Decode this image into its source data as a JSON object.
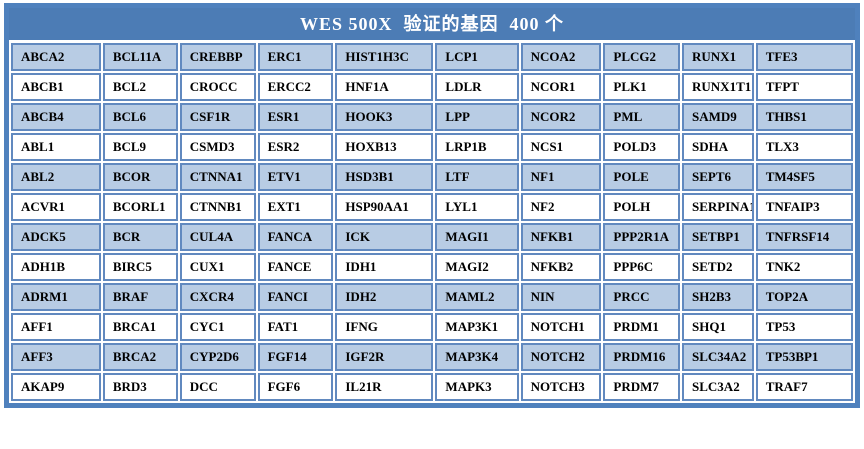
{
  "title": "WES 500X  验证的基因  400 个",
  "colors": {
    "frame": "#4f81bd",
    "header_bg": "#4c7cb5",
    "alt_row_bg": "#b8cce4",
    "row_bg": "#ffffff",
    "cell_border": "#6189bf",
    "title_color": "#ffffff",
    "text_color": "#000000"
  },
  "table": {
    "rows": [
      [
        "ABCA2",
        "BCL11A",
        "CREBBP",
        "ERC1",
        "HIST1H3C",
        "LCP1",
        "NCOA2",
        "PLCG2",
        "RUNX1",
        "TFE3"
      ],
      [
        "ABCB1",
        "BCL2",
        "CROCC",
        "ERCC2",
        "HNF1A",
        "LDLR",
        "NCOR1",
        "PLK1",
        "RUNX1T1",
        "TFPT"
      ],
      [
        "ABCB4",
        "BCL6",
        "CSF1R",
        "ESR1",
        "HOOK3",
        "LPP",
        "NCOR2",
        "PML",
        "SAMD9",
        "THBS1"
      ],
      [
        "ABL1",
        "BCL9",
        "CSMD3",
        "ESR2",
        "HOXB13",
        "LRP1B",
        "NCS1",
        "POLD3",
        "SDHA",
        "TLX3"
      ],
      [
        "ABL2",
        "BCOR",
        "CTNNA1",
        "ETV1",
        "HSD3B1",
        "LTF",
        "NF1",
        "POLE",
        "SEPT6",
        "TM4SF5"
      ],
      [
        "ACVR1",
        "BCORL1",
        "CTNNB1",
        "EXT1",
        "HSP90AA1",
        "LYL1",
        "NF2",
        "POLH",
        "SERPINA1",
        "TNFAIP3"
      ],
      [
        "ADCK5",
        "BCR",
        "CUL4A",
        "FANCA",
        "ICK",
        "MAGI1",
        "NFKB1",
        "PPP2R1A",
        "SETBP1",
        "TNFRSF14"
      ],
      [
        "ADH1B",
        "BIRC5",
        "CUX1",
        "FANCE",
        "IDH1",
        "MAGI2",
        "NFKB2",
        "PPP6C",
        "SETD2",
        "TNK2"
      ],
      [
        "ADRM1",
        "BRAF",
        "CXCR4",
        "FANCI",
        "IDH2",
        "MAML2",
        "NIN",
        "PRCC",
        "SH2B3",
        "TOP2A"
      ],
      [
        "AFF1",
        "BRCA1",
        "CYC1",
        "FAT1",
        "IFNG",
        "MAP3K1",
        "NOTCH1",
        "PRDM1",
        "SHQ1",
        "TP53"
      ],
      [
        "AFF3",
        "BRCA2",
        "CYP2D6",
        "FGF14",
        "IGF2R",
        "MAP3K4",
        "NOTCH2",
        "PRDM16",
        "SLC34A2",
        "TP53BP1"
      ],
      [
        "AKAP9",
        "BRD3",
        "DCC",
        "FGF6",
        "IL21R",
        "MAPK3",
        "NOTCH3",
        "PRDM7",
        "SLC3A2",
        "TRAF7"
      ]
    ]
  }
}
